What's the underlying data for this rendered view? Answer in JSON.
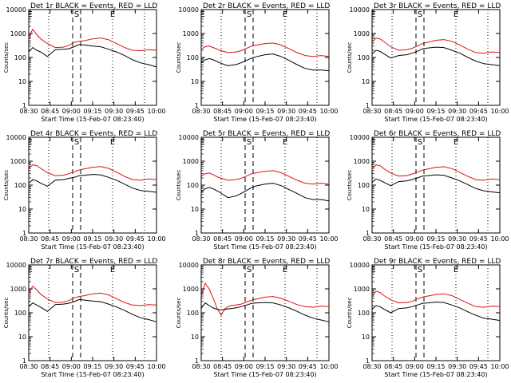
{
  "page": {
    "xaxis_title": "Start Time (15-Feb-07 08:23:40)",
    "yaxis_title": "Counts/sec",
    "colors": {
      "events": "#000000",
      "lld": "#dd1111",
      "axes": "#000000",
      "background": "#ffffff"
    }
  },
  "chart_data": [
    {
      "type": "line",
      "title": "Det 1r BLACK = Events, RED = LLD",
      "xticks": [
        "08:30",
        "08:45",
        "09:00",
        "09:15",
        "09:30",
        "09:45",
        "10:00"
      ],
      "yticks": [
        "1",
        "10",
        "100",
        "1000",
        "10000"
      ],
      "ylim": [
        1,
        10000
      ],
      "yscale": "log",
      "markers": [
        "E",
        "S",
        "E"
      ],
      "series": [
        {
          "name": "LLD",
          "color": "#dd1111",
          "x": [
            0,
            3,
            6,
            9,
            14,
            20,
            26,
            30,
            34,
            38,
            42,
            48,
            54,
            60,
            66,
            72,
            78,
            84,
            90,
            96
          ],
          "y": [
            700,
            1500,
            900,
            600,
            380,
            260,
            270,
            320,
            420,
            470,
            500,
            600,
            650,
            550,
            380,
            260,
            200,
            190,
            210,
            200
          ]
        },
        {
          "name": "Events",
          "color": "#000000",
          "x": [
            0,
            3,
            6,
            9,
            14,
            20,
            26,
            30,
            34,
            38,
            42,
            48,
            54,
            60,
            66,
            72,
            78,
            84,
            90,
            96
          ],
          "y": [
            170,
            260,
            200,
            170,
            110,
            210,
            220,
            230,
            280,
            350,
            330,
            300,
            280,
            220,
            170,
            120,
            80,
            60,
            50,
            40
          ]
        }
      ]
    },
    {
      "type": "line",
      "title": "Det 2r BLACK = Events, RED = LLD",
      "xticks": [
        "08:30",
        "08:45",
        "09:00",
        "09:15",
        "09:30",
        "09:45",
        "10:00"
      ],
      "yticks": [
        "1",
        "10",
        "100",
        "1000",
        "10000"
      ],
      "ylim": [
        1,
        10000
      ],
      "yscale": "log",
      "markers": [
        "E",
        "S",
        "E"
      ],
      "series": [
        {
          "name": "LLD",
          "color": "#dd1111",
          "x": [
            0,
            3,
            6,
            9,
            14,
            20,
            26,
            30,
            34,
            38,
            42,
            48,
            54,
            60,
            66,
            72,
            78,
            84,
            90,
            96
          ],
          "y": [
            220,
            280,
            300,
            260,
            200,
            160,
            170,
            190,
            240,
            300,
            330,
            380,
            400,
            330,
            230,
            160,
            120,
            110,
            120,
            110
          ]
        },
        {
          "name": "Events",
          "color": "#000000",
          "x": [
            0,
            3,
            6,
            9,
            14,
            20,
            26,
            30,
            34,
            38,
            42,
            48,
            54,
            60,
            66,
            72,
            78,
            84,
            90,
            96
          ],
          "y": [
            60,
            80,
            90,
            80,
            60,
            45,
            50,
            60,
            75,
            95,
            110,
            130,
            140,
            110,
            75,
            50,
            35,
            30,
            30,
            28
          ]
        }
      ]
    },
    {
      "type": "line",
      "title": "Det 3r BLACK = Events, RED = LLD",
      "xticks": [
        "08:30",
        "08:45",
        "09:00",
        "09:15",
        "09:30",
        "09:45",
        "10:00"
      ],
      "yticks": [
        "1",
        "10",
        "100",
        "1000",
        "10000"
      ],
      "ylim": [
        1,
        10000
      ],
      "yscale": "log",
      "markers": [
        "E",
        "S",
        "E"
      ],
      "series": [
        {
          "name": "LLD",
          "color": "#dd1111",
          "x": [
            0,
            3,
            6,
            9,
            14,
            20,
            26,
            30,
            34,
            38,
            42,
            48,
            54,
            60,
            66,
            72,
            78,
            84,
            90,
            96
          ],
          "y": [
            450,
            650,
            600,
            450,
            280,
            200,
            210,
            240,
            300,
            380,
            430,
            520,
            560,
            470,
            330,
            220,
            160,
            150,
            170,
            160
          ]
        },
        {
          "name": "Events",
          "color": "#000000",
          "x": [
            0,
            3,
            6,
            9,
            14,
            20,
            26,
            30,
            34,
            38,
            42,
            48,
            54,
            60,
            66,
            72,
            78,
            84,
            90,
            96
          ],
          "y": [
            140,
            200,
            180,
            140,
            95,
            120,
            130,
            150,
            180,
            230,
            250,
            270,
            260,
            200,
            150,
            100,
            70,
            55,
            50,
            45
          ]
        }
      ]
    },
    {
      "type": "line",
      "title": "Det 4r BLACK = Events, RED = LLD",
      "xticks": [
        "08:30",
        "08:45",
        "09:00",
        "09:15",
        "09:30",
        "09:45",
        "10:00"
      ],
      "yticks": [
        "1",
        "10",
        "100",
        "1000",
        "10000"
      ],
      "ylim": [
        1,
        10000
      ],
      "yscale": "log",
      "markers": [
        "E",
        "S",
        "E"
      ],
      "series": [
        {
          "name": "LLD",
          "color": "#dd1111",
          "x": [
            0,
            3,
            6,
            9,
            14,
            20,
            26,
            30,
            34,
            38,
            42,
            48,
            54,
            60,
            66,
            72,
            78,
            84,
            90,
            96
          ],
          "y": [
            500,
            700,
            650,
            500,
            330,
            250,
            260,
            300,
            360,
            430,
            480,
            560,
            600,
            500,
            350,
            230,
            170,
            160,
            180,
            170
          ]
        },
        {
          "name": "Events",
          "color": "#000000",
          "x": [
            0,
            3,
            6,
            9,
            14,
            20,
            26,
            30,
            34,
            38,
            42,
            48,
            54,
            60,
            66,
            72,
            78,
            84,
            90,
            96
          ],
          "y": [
            120,
            170,
            150,
            120,
            90,
            160,
            170,
            190,
            210,
            250,
            260,
            280,
            270,
            210,
            160,
            110,
            75,
            60,
            55,
            50
          ]
        }
      ]
    },
    {
      "type": "line",
      "title": "Det 5r BLACK = Events, RED = LLD",
      "xticks": [
        "08:30",
        "08:45",
        "09:00",
        "09:15",
        "09:30",
        "09:45",
        "10:00"
      ],
      "yticks": [
        "1",
        "10",
        "100",
        "1000",
        "10000"
      ],
      "ylim": [
        1,
        10000
      ],
      "yscale": "log",
      "markers": [
        "E",
        "S",
        "E"
      ],
      "series": [
        {
          "name": "LLD",
          "color": "#dd1111",
          "x": [
            0,
            3,
            6,
            9,
            14,
            20,
            26,
            30,
            34,
            38,
            42,
            48,
            54,
            60,
            66,
            72,
            78,
            84,
            90,
            96
          ],
          "y": [
            230,
            300,
            320,
            270,
            200,
            160,
            170,
            190,
            240,
            300,
            330,
            380,
            400,
            330,
            230,
            160,
            120,
            110,
            120,
            110
          ]
        },
        {
          "name": "Events",
          "color": "#000000",
          "x": [
            0,
            3,
            6,
            9,
            14,
            20,
            26,
            30,
            34,
            38,
            42,
            48,
            54,
            60,
            66,
            72,
            78,
            84,
            90,
            96
          ],
          "y": [
            50,
            70,
            80,
            70,
            50,
            30,
            35,
            45,
            60,
            80,
            95,
            110,
            120,
            95,
            65,
            45,
            30,
            25,
            25,
            22
          ]
        }
      ]
    },
    {
      "type": "line",
      "title": "Det 6r BLACK = Events, RED = LLD",
      "xticks": [
        "08:30",
        "08:45",
        "09:00",
        "09:15",
        "09:30",
        "09:45",
        "10:00"
      ],
      "yticks": [
        "1",
        "10",
        "100",
        "1000",
        "10000"
      ],
      "ylim": [
        1,
        10000
      ],
      "yscale": "log",
      "markers": [
        "E",
        "S",
        "E"
      ],
      "series": [
        {
          "name": "LLD",
          "color": "#dd1111",
          "x": [
            0,
            3,
            6,
            9,
            14,
            20,
            26,
            30,
            34,
            38,
            42,
            48,
            54,
            60,
            66,
            72,
            78,
            84,
            90,
            96
          ],
          "y": [
            480,
            700,
            650,
            480,
            320,
            240,
            250,
            290,
            350,
            420,
            470,
            550,
            590,
            490,
            340,
            230,
            170,
            160,
            180,
            170
          ]
        },
        {
          "name": "Events",
          "color": "#000000",
          "x": [
            0,
            3,
            6,
            9,
            14,
            20,
            26,
            30,
            34,
            38,
            42,
            48,
            54,
            60,
            66,
            72,
            78,
            84,
            90,
            96
          ],
          "y": [
            130,
            180,
            160,
            130,
            95,
            140,
            150,
            170,
            200,
            240,
            250,
            270,
            260,
            200,
            150,
            105,
            72,
            58,
            52,
            48
          ]
        }
      ]
    },
    {
      "type": "line",
      "title": "Det 7r BLACK = Events, RED = LLD",
      "xticks": [
        "08:30",
        "08:45",
        "09:00",
        "09:15",
        "09:30",
        "09:45",
        "10:00"
      ],
      "yticks": [
        "1",
        "10",
        "100",
        "1000",
        "10000"
      ],
      "ylim": [
        1,
        10000
      ],
      "yscale": "log",
      "markers": [
        "E",
        "S",
        "E"
      ],
      "series": [
        {
          "name": "LLD",
          "color": "#dd1111",
          "x": [
            0,
            3,
            6,
            9,
            14,
            20,
            26,
            30,
            34,
            38,
            42,
            48,
            54,
            60,
            66,
            72,
            78,
            84,
            90,
            96
          ],
          "y": [
            700,
            1300,
            900,
            600,
            380,
            270,
            280,
            320,
            420,
            480,
            520,
            620,
            660,
            560,
            390,
            270,
            210,
            200,
            220,
            210
          ]
        },
        {
          "name": "Events",
          "color": "#000000",
          "x": [
            0,
            3,
            6,
            9,
            14,
            20,
            26,
            30,
            34,
            38,
            42,
            48,
            54,
            60,
            66,
            72,
            78,
            84,
            90,
            96
          ],
          "y": [
            180,
            260,
            210,
            170,
            115,
            220,
            230,
            250,
            290,
            360,
            340,
            310,
            290,
            230,
            175,
            125,
            85,
            62,
            52,
            42
          ]
        }
      ]
    },
    {
      "type": "line",
      "title": "Det 8r BLACK = Events, RED = LLD",
      "xticks": [
        "08:30",
        "08:45",
        "09:00",
        "09:15",
        "09:30",
        "09:45",
        "10:00"
      ],
      "yticks": [
        "1",
        "10",
        "100",
        "1000",
        "10000"
      ],
      "ylim": [
        1,
        10000
      ],
      "yscale": "log",
      "markers": [
        "S",
        "E"
      ],
      "series": [
        {
          "name": "LLD",
          "color": "#dd1111",
          "x": [
            0,
            3,
            6,
            9,
            12,
            15,
            18,
            22,
            26,
            30,
            34,
            38,
            42,
            48,
            54,
            60,
            66,
            72,
            78,
            84,
            90,
            96
          ],
          "y": [
            500,
            1700,
            1000,
            400,
            150,
            80,
            150,
            200,
            210,
            230,
            280,
            340,
            380,
            450,
            480,
            400,
            300,
            220,
            180,
            170,
            190,
            180
          ]
        },
        {
          "name": "Events",
          "color": "#000000",
          "x": [
            0,
            3,
            6,
            9,
            12,
            15,
            18,
            22,
            26,
            30,
            34,
            38,
            42,
            48,
            54,
            60,
            66,
            72,
            78,
            84,
            90,
            96
          ],
          "y": [
            150,
            260,
            200,
            160,
            140,
            130,
            140,
            150,
            160,
            180,
            210,
            250,
            260,
            270,
            260,
            210,
            160,
            115,
            80,
            60,
            50,
            42
          ]
        }
      ]
    },
    {
      "type": "line",
      "title": "Det 9r BLACK = Events, RED = LLD",
      "xticks": [
        "08:30",
        "08:45",
        "09:00",
        "09:15",
        "09:30",
        "09:45",
        "10:00"
      ],
      "yticks": [
        "1",
        "10",
        "100",
        "1000",
        "10000"
      ],
      "ylim": [
        1,
        10000
      ],
      "yscale": "log",
      "markers": [
        "E",
        "S",
        "E"
      ],
      "series": [
        {
          "name": "LLD",
          "color": "#dd1111",
          "x": [
            0,
            3,
            6,
            9,
            14,
            20,
            26,
            30,
            34,
            38,
            42,
            48,
            54,
            60,
            66,
            72,
            78,
            84,
            90,
            96
          ],
          "y": [
            500,
            800,
            700,
            520,
            350,
            260,
            270,
            300,
            380,
            450,
            500,
            580,
            620,
            520,
            360,
            250,
            180,
            170,
            190,
            180
          ]
        },
        {
          "name": "Events",
          "color": "#000000",
          "x": [
            0,
            3,
            6,
            9,
            14,
            20,
            26,
            30,
            34,
            38,
            42,
            48,
            54,
            60,
            66,
            72,
            78,
            84,
            90,
            96
          ],
          "y": [
            140,
            200,
            180,
            140,
            100,
            150,
            160,
            180,
            210,
            250,
            260,
            280,
            270,
            210,
            160,
            110,
            78,
            60,
            54,
            48
          ]
        }
      ]
    }
  ]
}
